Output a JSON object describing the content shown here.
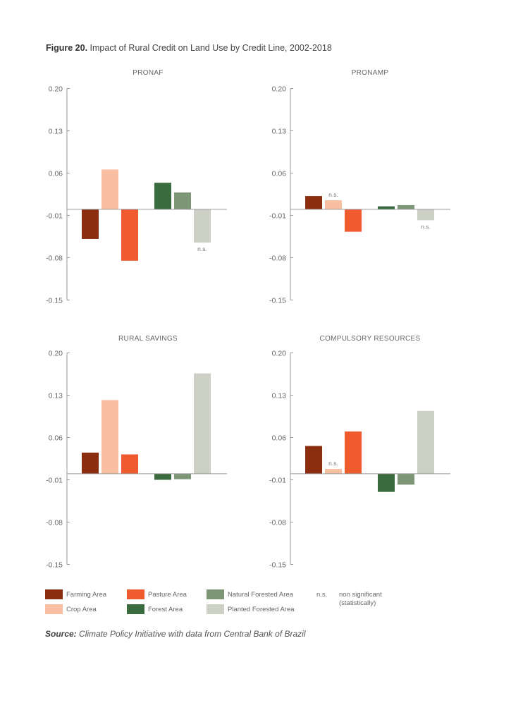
{
  "figure": {
    "label": "Figure 20.",
    "title": "Impact of Rural Credit on Land Use by Credit Line, 2002-2018"
  },
  "chart_data": [
    {
      "type": "bar",
      "title": "PRONAF",
      "categories": [
        "Farming Area",
        "Crop Area",
        "Pasture Area",
        "Forest Area",
        "Natural Forested Area",
        "Planted Forested Area"
      ],
      "values": [
        -0.049,
        0.066,
        -0.085,
        0.044,
        0.028,
        -0.055
      ],
      "non_significant": [
        false,
        false,
        false,
        false,
        false,
        true
      ],
      "yticks": [
        "0.20",
        "0.13",
        "0.06",
        "-0.01",
        "-0.08",
        "-0.15"
      ],
      "ylim": [
        -0.15,
        0.2
      ],
      "xlabel": "",
      "ylabel": "",
      "grid": false
    },
    {
      "type": "bar",
      "title": "PRONAMP",
      "categories": [
        "Farming Area",
        "Crop Area",
        "Pasture Area",
        "Forest Area",
        "Natural Forested Area",
        "Planted Forested Area"
      ],
      "values": [
        0.022,
        0.015,
        -0.037,
        0.005,
        0.007,
        -0.018
      ],
      "non_significant": [
        false,
        true,
        false,
        false,
        false,
        true
      ],
      "yticks": [
        "0.20",
        "0.13",
        "0.06",
        "-0.01",
        "-0.08",
        "-0.15"
      ],
      "ylim": [
        -0.15,
        0.2
      ],
      "xlabel": "",
      "ylabel": "",
      "grid": false
    },
    {
      "type": "bar",
      "title": "RURAL SAVINGS",
      "categories": [
        "Farming Area",
        "Crop Area",
        "Pasture Area",
        "Forest Area",
        "Natural Forested Area",
        "Planted Forested Area"
      ],
      "values": [
        0.035,
        0.122,
        0.032,
        -0.01,
        -0.009,
        0.166
      ],
      "non_significant": [
        false,
        false,
        false,
        false,
        false,
        false
      ],
      "yticks": [
        "0.20",
        "0.13",
        "0.06",
        "-0.01",
        "-0.08",
        "-0.15"
      ],
      "ylim": [
        -0.15,
        0.2
      ],
      "xlabel": "",
      "ylabel": "",
      "grid": false
    },
    {
      "type": "bar",
      "title": "COMPULSORY RESOURCES",
      "categories": [
        "Farming Area",
        "Crop Area",
        "Pasture Area",
        "Forest Area",
        "Natural Forested Area",
        "Planted Forested Area"
      ],
      "values": [
        0.046,
        0.008,
        0.07,
        -0.03,
        -0.018,
        0.104
      ],
      "non_significant": [
        false,
        true,
        false,
        false,
        false,
        false
      ],
      "yticks": [
        "0.20",
        "0.13",
        "0.06",
        "-0.01",
        "-0.08",
        "-0.15"
      ],
      "ylim": [
        -0.15,
        0.2
      ],
      "xlabel": "",
      "ylabel": "",
      "grid": false
    }
  ],
  "legend": {
    "items": [
      {
        "label": "Farming Area",
        "color": "#8b2e10"
      },
      {
        "label": "Crop Area",
        "color": "#f9bfa3"
      },
      {
        "label": "Pasture Area",
        "color": "#ef5a2f"
      },
      {
        "label": "Forest Area",
        "color": "#3a6b3e"
      },
      {
        "label": "Natural Forested Area",
        "color": "#7c9676"
      },
      {
        "label": "Planted Forested Area",
        "color": "#cdd0c5"
      }
    ],
    "ns_abbr": "n.s.",
    "ns_desc": "non significant (statistically)"
  },
  "source": {
    "label": "Source:",
    "text": "Climate Policy Initiative with data from Central Bank of Brazil"
  }
}
